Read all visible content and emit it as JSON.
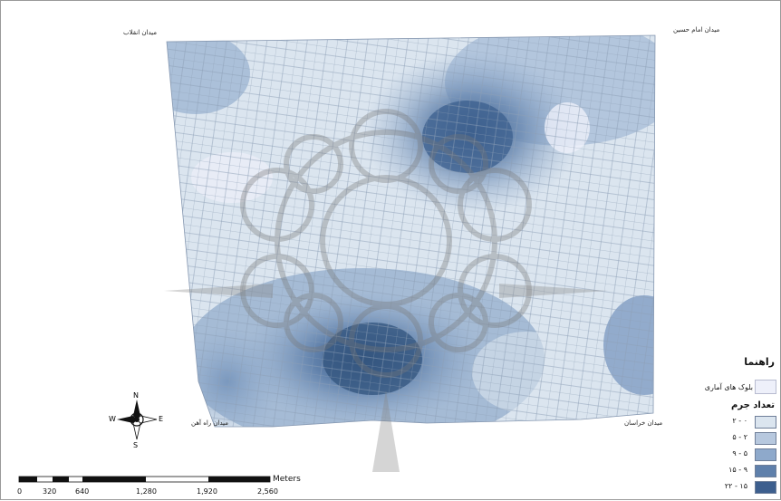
{
  "places": {
    "top_left": "میدان انقلاب",
    "top_right": "میدان امام حسین",
    "bottom_left": "میدان راه آهن",
    "bottom_right": "میدان خراسان"
  },
  "north_arrow": {
    "n": "N",
    "s": "S",
    "e": "E",
    "w": "W"
  },
  "legend": {
    "title": "راهنما",
    "block_label": "بلوک های آماری",
    "block_color": "#eef0fa",
    "subtitle": "تعداد جرم",
    "classes": [
      {
        "label": "۲ - ۰",
        "color": "#dbe5ef"
      },
      {
        "label": "۵ - ۲",
        "color": "#b7c8de"
      },
      {
        "label": "۹ - ۵",
        "color": "#8ea9cb"
      },
      {
        "label": "۱۵ - ۹",
        "color": "#5f80ab"
      },
      {
        "label": "۲۲ - ۱۵",
        "color": "#3d5f8e"
      }
    ]
  },
  "scale_bar": {
    "unit": "Meters",
    "ticks": [
      "0",
      "320",
      "640",
      "1,280",
      "1,920",
      "2,560"
    ]
  }
}
